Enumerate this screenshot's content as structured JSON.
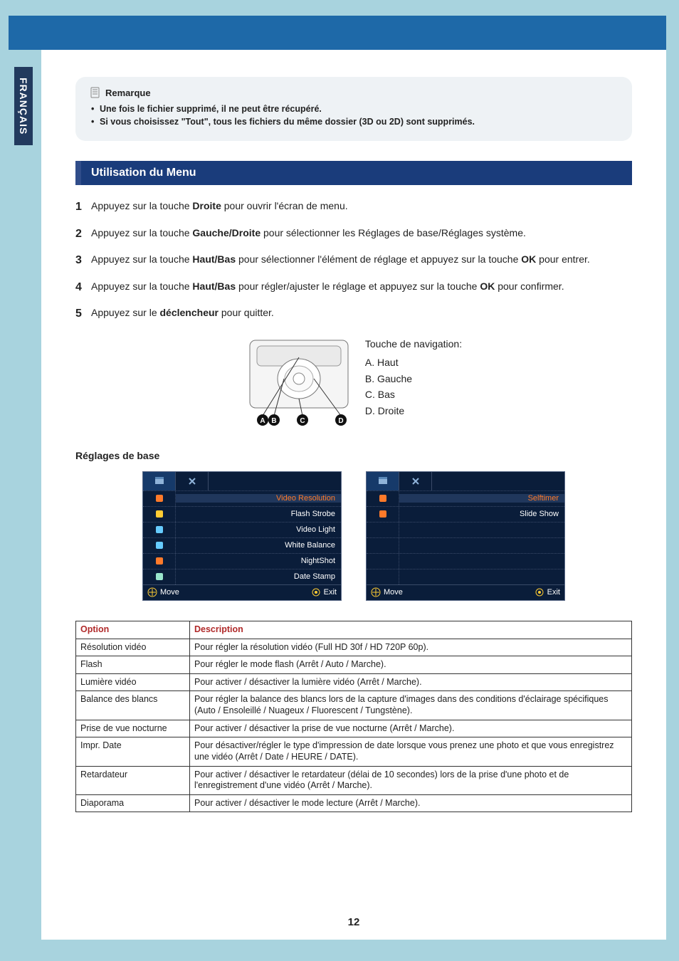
{
  "lang_tab": "FRANÇAIS",
  "note": {
    "title": "Remarque",
    "items": [
      "Une fois le fichier supprimé, il ne peut être récupéré.",
      "Si vous choisissez \"Tout\", tous les fichiers du même dossier (3D ou 2D) sont supprimés."
    ]
  },
  "section_title": "Utilisation du Menu",
  "steps": [
    {
      "pre": "Appuyez sur la touche ",
      "bold": "Droite",
      "post": " pour ouvrir l'écran de menu."
    },
    {
      "pre": "Appuyez sur la touche ",
      "bold": "Gauche/Droite",
      "post": " pour sélectionner les Réglages de base/Réglages système."
    },
    {
      "pre": "Appuyez sur la touche ",
      "bold": "Haut/Bas",
      "post": " pour sélectionner l'élément de réglage et appuyez sur la touche ",
      "bold2": "OK",
      "post2": " pour entrer."
    },
    {
      "pre": "Appuyez sur la touche ",
      "bold": "Haut/Bas",
      "post": " pour régler/ajuster le réglage et appuyez sur la touche ",
      "bold2": "OK",
      "post2": " pour confirmer."
    },
    {
      "pre": "Appuyez sur le ",
      "bold": "déclencheur",
      "post": " pour quitter."
    }
  ],
  "nav": {
    "title": "Touche de navigation:",
    "a": "A. Haut",
    "b": "B. Gauche",
    "c": "C. Bas",
    "d": "D. Droite",
    "markers": {
      "a": "A",
      "b": "B",
      "c": "C",
      "d": "D"
    }
  },
  "subheading": "Réglages de base",
  "menu1": {
    "rows": [
      {
        "label": "Video Resolution",
        "selected": true,
        "icon_color": "#ff7a2a"
      },
      {
        "label": "Flash Strobe",
        "selected": false,
        "icon_color": "#ffcc33"
      },
      {
        "label": "Video Light",
        "selected": false,
        "icon_color": "#66ccff"
      },
      {
        "label": "White Balance",
        "selected": false,
        "icon_color": "#66ccff"
      },
      {
        "label": "NightShot",
        "selected": false,
        "icon_color": "#ff7a2a"
      },
      {
        "label": "Date Stamp",
        "selected": false,
        "icon_color": "#99e6cc"
      }
    ],
    "footer": {
      "move": "Move",
      "exit": "Exit"
    }
  },
  "menu2": {
    "rows": [
      {
        "label": "Selftimer",
        "selected": true,
        "icon_color": "#ff7a2a"
      },
      {
        "label": "Slide Show",
        "selected": false,
        "icon_color": "#ff7a2a"
      },
      {
        "label": "",
        "selected": false,
        "icon_color": ""
      },
      {
        "label": "",
        "selected": false,
        "icon_color": ""
      },
      {
        "label": "",
        "selected": false,
        "icon_color": ""
      },
      {
        "label": "",
        "selected": false,
        "icon_color": ""
      }
    ],
    "footer": {
      "move": "Move",
      "exit": "Exit"
    }
  },
  "table": {
    "headers": {
      "option": "Option",
      "description": "Description"
    },
    "rows": [
      {
        "opt": "Résolution vidéo",
        "desc": "Pour régler la résolution vidéo (Full HD 30f / HD 720P 60p)."
      },
      {
        "opt": "Flash",
        "desc": "Pour régler le mode flash (Arrêt / Auto / Marche)."
      },
      {
        "opt": "Lumière vidéo",
        "desc": "Pour activer / désactiver la lumière vidéo (Arrêt / Marche)."
      },
      {
        "opt": "Balance des blancs",
        "desc": "Pour régler la balance des blancs lors de la capture d'images dans des conditions d'éclairage spécifiques (Auto / Ensoleillé / Nuageux / Fluorescent / Tungstène)."
      },
      {
        "opt": "Prise de vue nocturne",
        "desc": "Pour activer / désactiver la prise de vue nocturne (Arrêt / Marche)."
      },
      {
        "opt": "Impr. Date",
        "desc": "Pour désactiver/régler le type d'impression de date lorsque vous prenez une photo et que vous enregistrez une vidéo (Arrêt / Date / HEURE / DATE)."
      },
      {
        "opt": "Retardateur",
        "desc": "Pour activer / désactiver le retardateur (délai de 10 secondes) lors de la prise d'une photo et de l'enregistrement d'une vidéo (Arrêt / Marche)."
      },
      {
        "opt": "Diaporama",
        "desc": "Pour activer / désactiver le mode lecture (Arrêt / Marche)."
      }
    ]
  },
  "page_number": "12",
  "colors": {
    "outer_bg": "#a8d3de",
    "stripe": "#1e69a8",
    "tab_bg": "#223a5e",
    "section_bar": "#1a3c7b",
    "note_bg": "#eef2f5",
    "menu_bg": "#0a1d3a",
    "menu_selected_text": "#ff7a2a",
    "table_header_text": "#b02a2a"
  }
}
